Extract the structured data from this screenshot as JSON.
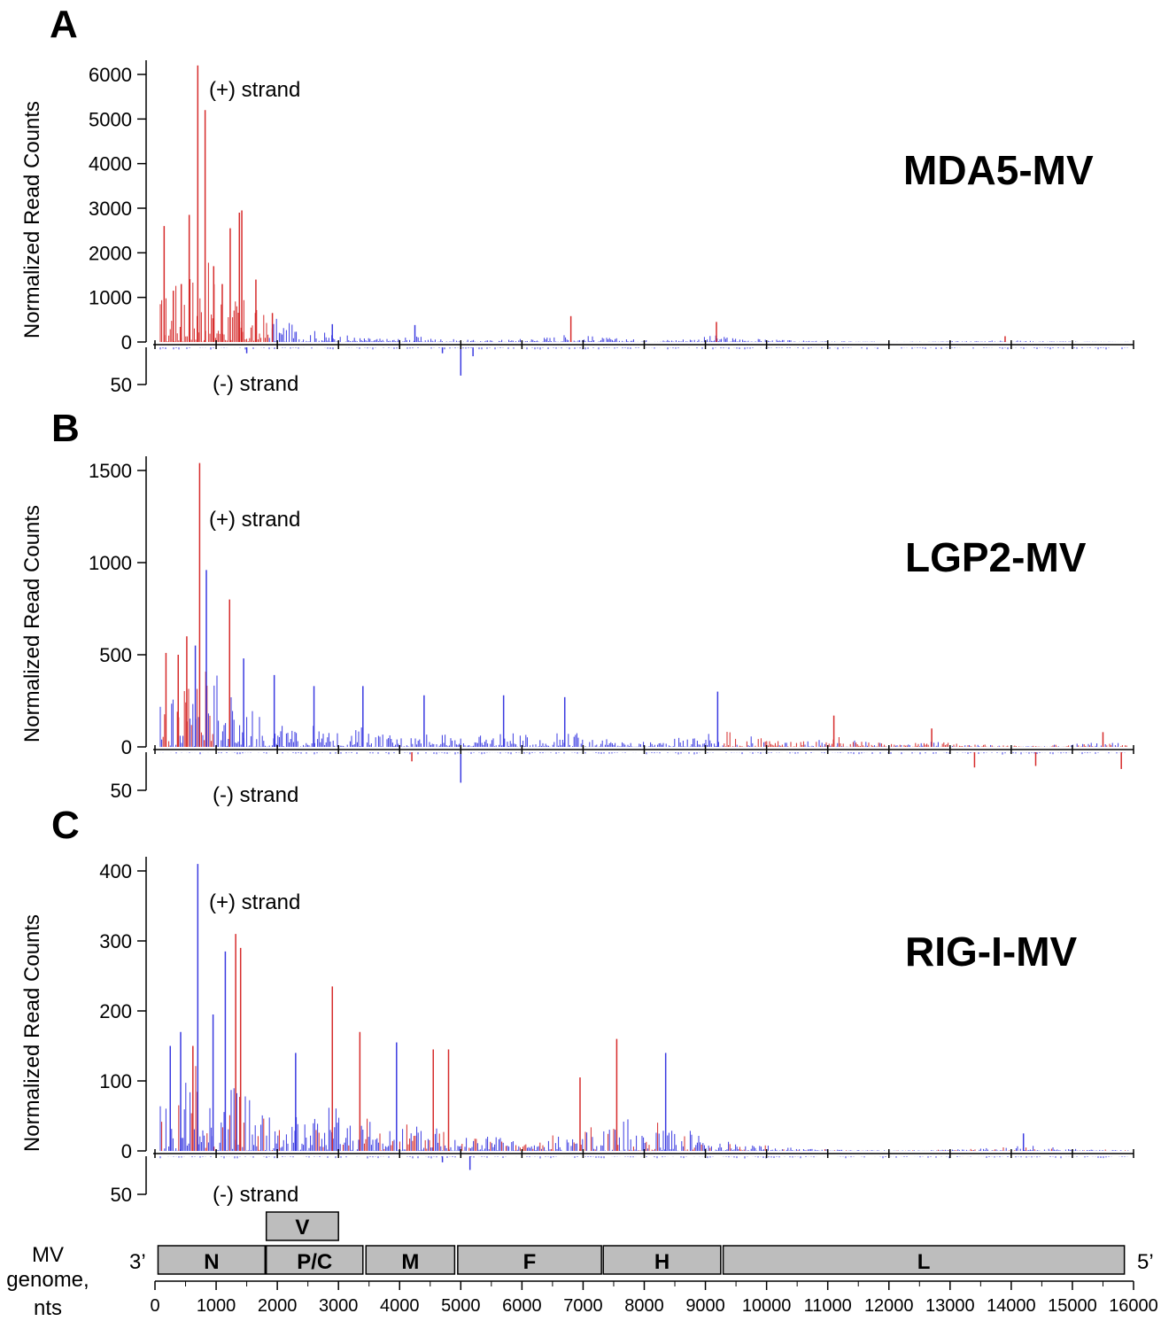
{
  "chart_data": [
    {
      "type": "bar",
      "panel": "A",
      "title": "MDA5-MV",
      "ylabel": "Normalized Read Counts",
      "plus_label": "(+) strand",
      "minus_label": "(-) strand",
      "ylim_plus": [
        0,
        6000
      ],
      "ylim_minus": [
        0,
        50
      ],
      "yticks_plus": [
        0,
        1000,
        2000,
        3000,
        4000,
        5000,
        6000
      ],
      "yticks_minus": [
        50
      ],
      "x_range": [
        0,
        16000
      ],
      "plus_peaks": [
        {
          "x": 150,
          "y": 2600,
          "color": "red"
        },
        {
          "x": 300,
          "y": 1150,
          "color": "red"
        },
        {
          "x": 430,
          "y": 1300,
          "color": "red"
        },
        {
          "x": 560,
          "y": 2850,
          "color": "red"
        },
        {
          "x": 700,
          "y": 6200,
          "color": "red"
        },
        {
          "x": 820,
          "y": 5200,
          "color": "red"
        },
        {
          "x": 960,
          "y": 1700,
          "color": "red"
        },
        {
          "x": 1100,
          "y": 1300,
          "color": "red"
        },
        {
          "x": 1230,
          "y": 2550,
          "color": "red"
        },
        {
          "x": 1380,
          "y": 2900,
          "color": "red"
        },
        {
          "x": 1420,
          "y": 2950,
          "color": "red"
        },
        {
          "x": 1650,
          "y": 1400,
          "color": "red"
        },
        {
          "x": 1920,
          "y": 650,
          "color": "red"
        },
        {
          "x": 2900,
          "y": 400,
          "color": "blue"
        },
        {
          "x": 4250,
          "y": 380,
          "color": "blue"
        },
        {
          "x": 6800,
          "y": 580,
          "color": "red"
        },
        {
          "x": 9180,
          "y": 450,
          "color": "red"
        },
        {
          "x": 13900,
          "y": 130,
          "color": "red"
        }
      ],
      "minus_peaks": [
        {
          "x": 1500,
          "y": 8,
          "color": "blue"
        },
        {
          "x": 4700,
          "y": 8,
          "color": "blue"
        },
        {
          "x": 5000,
          "y": 38,
          "color": "blue"
        },
        {
          "x": 5200,
          "y": 12,
          "color": "blue"
        }
      ]
    },
    {
      "type": "bar",
      "panel": "B",
      "title": "LGP2-MV",
      "ylabel": "Normalized Read Counts",
      "plus_label": "(+) strand",
      "minus_label": "(-) strand",
      "ylim_plus": [
        0,
        1500
      ],
      "ylim_minus": [
        0,
        50
      ],
      "yticks_plus": [
        0,
        500,
        1000,
        1500
      ],
      "yticks_minus": [
        50
      ],
      "x_range": [
        0,
        16000
      ],
      "plus_peaks": [
        {
          "x": 180,
          "y": 510,
          "color": "red"
        },
        {
          "x": 380,
          "y": 500,
          "color": "red"
        },
        {
          "x": 520,
          "y": 600,
          "color": "red"
        },
        {
          "x": 660,
          "y": 550,
          "color": "blue"
        },
        {
          "x": 730,
          "y": 1540,
          "color": "red"
        },
        {
          "x": 840,
          "y": 960,
          "color": "blue"
        },
        {
          "x": 1220,
          "y": 800,
          "color": "red"
        },
        {
          "x": 1450,
          "y": 480,
          "color": "blue"
        },
        {
          "x": 1950,
          "y": 390,
          "color": "blue"
        },
        {
          "x": 2600,
          "y": 330,
          "color": "blue"
        },
        {
          "x": 3400,
          "y": 330,
          "color": "blue"
        },
        {
          "x": 4400,
          "y": 280,
          "color": "blue"
        },
        {
          "x": 5700,
          "y": 280,
          "color": "blue"
        },
        {
          "x": 6700,
          "y": 270,
          "color": "blue"
        },
        {
          "x": 9200,
          "y": 300,
          "color": "blue"
        },
        {
          "x": 11100,
          "y": 170,
          "color": "red"
        },
        {
          "x": 12700,
          "y": 100,
          "color": "red"
        },
        {
          "x": 15500,
          "y": 80,
          "color": "red"
        }
      ],
      "minus_peaks": [
        {
          "x": 5000,
          "y": 40,
          "color": "blue"
        },
        {
          "x": 4200,
          "y": 12,
          "color": "red"
        },
        {
          "x": 13400,
          "y": 20,
          "color": "red"
        },
        {
          "x": 14400,
          "y": 18,
          "color": "red"
        },
        {
          "x": 15800,
          "y": 22,
          "color": "red"
        }
      ]
    },
    {
      "type": "bar",
      "panel": "C",
      "title": "RIG-I-MV",
      "ylabel": "Normalized Read Counts",
      "plus_label": "(+) strand",
      "minus_label": "(-) strand",
      "ylim_plus": [
        0,
        400
      ],
      "ylim_minus": [
        0,
        50
      ],
      "yticks_plus": [
        0,
        100,
        200,
        300,
        400
      ],
      "yticks_minus": [
        50
      ],
      "x_range": [
        0,
        16000
      ],
      "plus_peaks": [
        {
          "x": 250,
          "y": 150,
          "color": "blue"
        },
        {
          "x": 420,
          "y": 170,
          "color": "blue"
        },
        {
          "x": 620,
          "y": 150,
          "color": "red"
        },
        {
          "x": 700,
          "y": 410,
          "color": "blue"
        },
        {
          "x": 950,
          "y": 195,
          "color": "blue"
        },
        {
          "x": 1150,
          "y": 285,
          "color": "blue"
        },
        {
          "x": 1320,
          "y": 310,
          "color": "red"
        },
        {
          "x": 1400,
          "y": 290,
          "color": "red"
        },
        {
          "x": 2300,
          "y": 140,
          "color": "blue"
        },
        {
          "x": 2900,
          "y": 235,
          "color": "red"
        },
        {
          "x": 3350,
          "y": 170,
          "color": "red"
        },
        {
          "x": 3950,
          "y": 155,
          "color": "blue"
        },
        {
          "x": 4550,
          "y": 145,
          "color": "red"
        },
        {
          "x": 4800,
          "y": 145,
          "color": "red"
        },
        {
          "x": 6950,
          "y": 105,
          "color": "red"
        },
        {
          "x": 7550,
          "y": 160,
          "color": "red"
        },
        {
          "x": 8350,
          "y": 140,
          "color": "blue"
        },
        {
          "x": 14200,
          "y": 25,
          "color": "blue"
        }
      ],
      "minus_peaks": [
        {
          "x": 4700,
          "y": 8,
          "color": "blue"
        },
        {
          "x": 5150,
          "y": 18,
          "color": "blue"
        }
      ]
    }
  ],
  "genome": {
    "label_line1": "MV",
    "label_line2": "genome,",
    "label_line3": "nts",
    "end_3": "3’",
    "end_5": "5’",
    "genes": [
      {
        "name": "N",
        "start": 50,
        "end": 1800
      },
      {
        "name": "P/C",
        "start": 1820,
        "end": 3400
      },
      {
        "name": "M",
        "start": 3450,
        "end": 4900
      },
      {
        "name": "F",
        "start": 4950,
        "end": 7300
      },
      {
        "name": "H",
        "start": 7330,
        "end": 9250
      },
      {
        "name": "L",
        "start": 9290,
        "end": 15850
      }
    ],
    "overlay_gene": {
      "name": "V",
      "start": 1820,
      "end": 3000
    },
    "xticks": [
      0,
      1000,
      2000,
      3000,
      4000,
      5000,
      6000,
      7000,
      8000,
      9000,
      10000,
      11000,
      12000,
      13000,
      14000,
      15000,
      16000
    ]
  },
  "colors": {
    "plus_strand": "#d62b2b",
    "minus_strand": "#3a3ae0",
    "gene_fill": "#bdbdbd"
  }
}
